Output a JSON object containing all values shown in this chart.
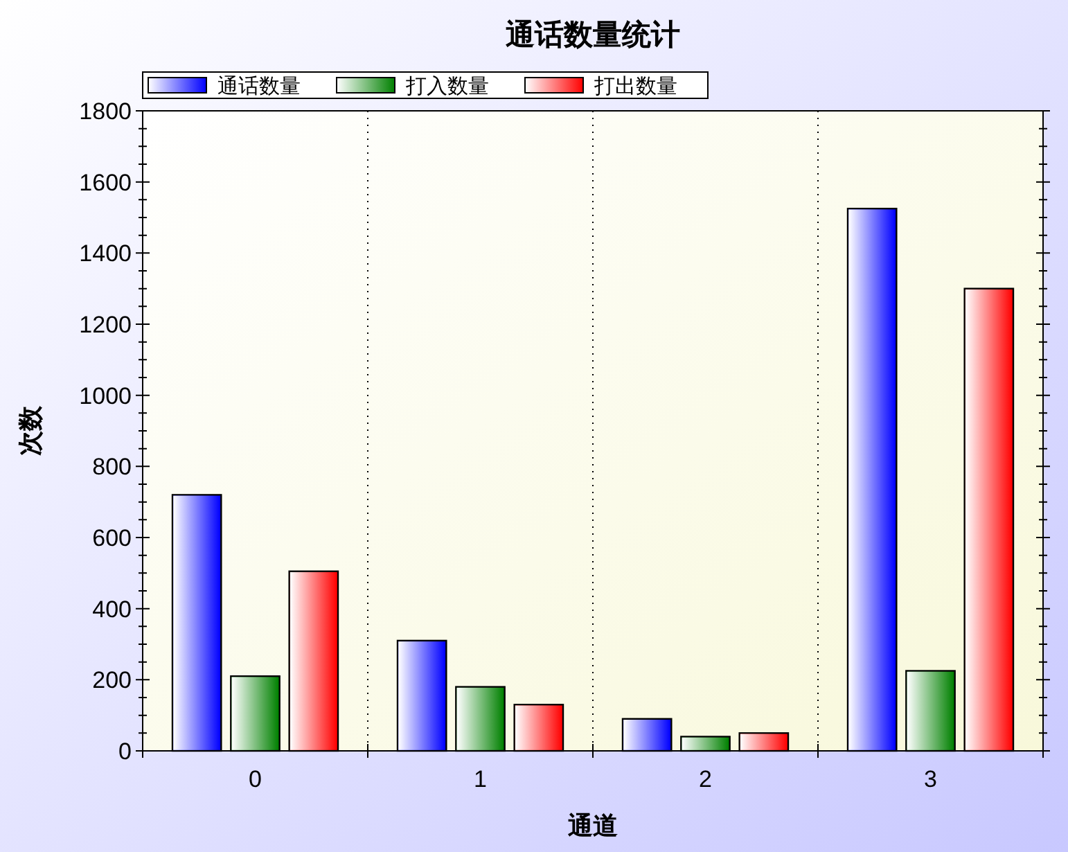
{
  "chart_data": {
    "type": "bar",
    "title": "通话数量统计",
    "xlabel": "通道",
    "ylabel": "次数",
    "categories": [
      "0",
      "1",
      "2",
      "3"
    ],
    "series": [
      {
        "name": "通话数量",
        "color": "#0000ff",
        "values": [
          720,
          310,
          90,
          1525
        ]
      },
      {
        "name": "打入数量",
        "color": "#008000",
        "values": [
          210,
          180,
          40,
          225
        ]
      },
      {
        "name": "打出数量",
        "color": "#ff0000",
        "values": [
          505,
          130,
          50,
          1300
        ]
      }
    ],
    "ylim": [
      0,
      1800
    ],
    "yticks": [
      0,
      200,
      400,
      600,
      800,
      1000,
      1200,
      1400,
      1600,
      1800
    ],
    "grid": "x",
    "legend": "top left"
  }
}
